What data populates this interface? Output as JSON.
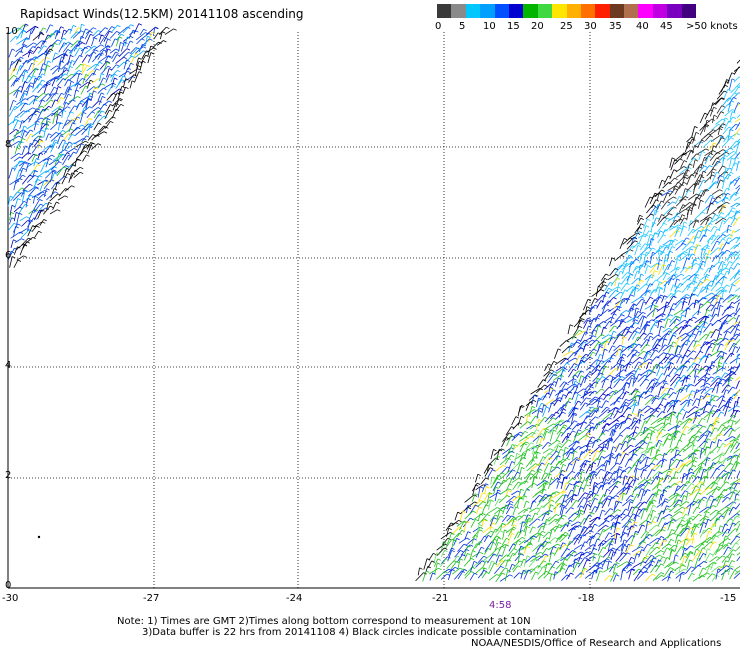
{
  "title": "Rapidsact Winds(12.5KM) 20141108 ascending",
  "legend": {
    "colors": [
      "#3a3a3a",
      "#8a8a8a",
      "#00c8ff",
      "#00a0ff",
      "#0050ff",
      "#0000d0",
      "#00b400",
      "#40d840",
      "#ffe600",
      "#ffb000",
      "#ff7000",
      "#ff1e00",
      "#6b3a20",
      "#b07050",
      "#ff00ff",
      "#c000e0",
      "#7a00c0",
      "#400080"
    ],
    "labels": [
      "0",
      "5",
      "10",
      "15",
      "20",
      "25",
      "30",
      "35",
      "40",
      "45",
      ">50 knots"
    ]
  },
  "map": {
    "x_ticks": [
      "-30",
      "-27",
      "-24",
      "-21",
      "-18",
      "-15"
    ],
    "y_ticks": [
      "10",
      "8",
      "6",
      "4",
      "2",
      "0"
    ],
    "time_label": "4:58"
  },
  "notes": {
    "line1": "Note: 1) Times are GMT 2)Times along bottom correspond to measurement at 10N",
    "line2": "3)Data buffer is 22 hrs from 20141108 4) Black circles indicate possible contamination"
  },
  "credit": "NOAA/NESDIS/Office of Research and Applications"
}
